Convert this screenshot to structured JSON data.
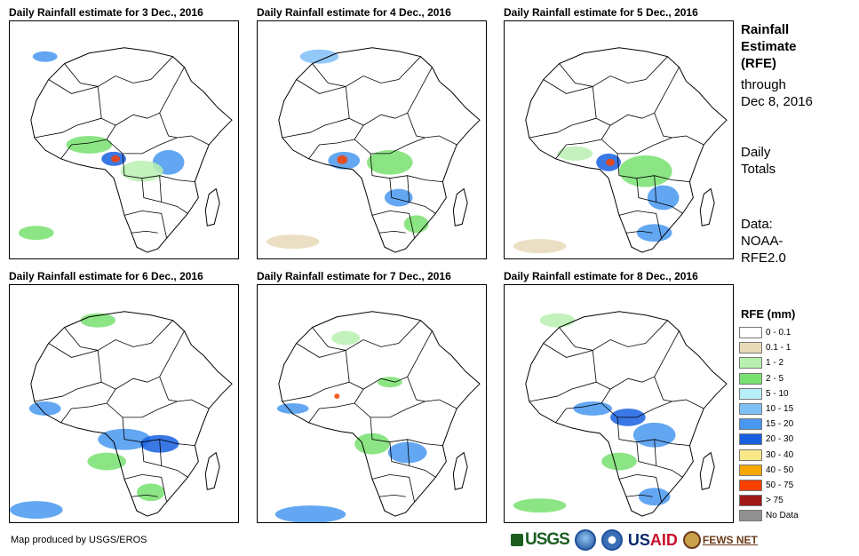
{
  "panels": [
    {
      "title": "Daily Rainfall estimate for 3 Dec., 2016"
    },
    {
      "title": "Daily Rainfall estimate for 4 Dec., 2016"
    },
    {
      "title": "Daily Rainfall estimate for 5 Dec., 2016"
    },
    {
      "title": "Daily Rainfall estimate for 6 Dec., 2016"
    },
    {
      "title": "Daily Rainfall estimate for 7 Dec., 2016"
    },
    {
      "title": "Daily Rainfall estimate for 8 Dec., 2016"
    }
  ],
  "side": {
    "title_line1": "Rainfall",
    "title_line2": "Estimate",
    "title_line3": "(RFE)",
    "through_line1": "through",
    "through_line2": "Dec 8, 2016",
    "totals_line1": "Daily",
    "totals_line2": "Totals",
    "data_line1": "Data:",
    "data_line2": "NOAA-",
    "data_line3": "RFE2.0"
  },
  "legend": {
    "title": "RFE (mm)",
    "items": [
      {
        "label": "0 - 0.1",
        "color": "#ffffff"
      },
      {
        "label": "0.1 - 1",
        "color": "#e8d9b8"
      },
      {
        "label": "1 - 2",
        "color": "#b8f0b0"
      },
      {
        "label": "2 - 5",
        "color": "#78e070"
      },
      {
        "label": "5 - 10",
        "color": "#b8eef8"
      },
      {
        "label": "10 - 15",
        "color": "#80c0f8"
      },
      {
        "label": "15 - 20",
        "color": "#4898f0"
      },
      {
        "label": "20 - 30",
        "color": "#1860e0"
      },
      {
        "label": "30 - 40",
        "color": "#f8e888"
      },
      {
        "label": "40 - 50",
        "color": "#f8a800"
      },
      {
        "label": "50 - 75",
        "color": "#f84000"
      },
      {
        "label": "> 75",
        "color": "#a01818"
      },
      {
        "label": "No Data",
        "color": "#909090"
      }
    ]
  },
  "footer": {
    "credit": "Map produced by USGS/EROS"
  },
  "logos": {
    "usgs": "USGS",
    "usaid_us": "US",
    "usaid_aid": "AID",
    "fews": "FEWS NET"
  }
}
